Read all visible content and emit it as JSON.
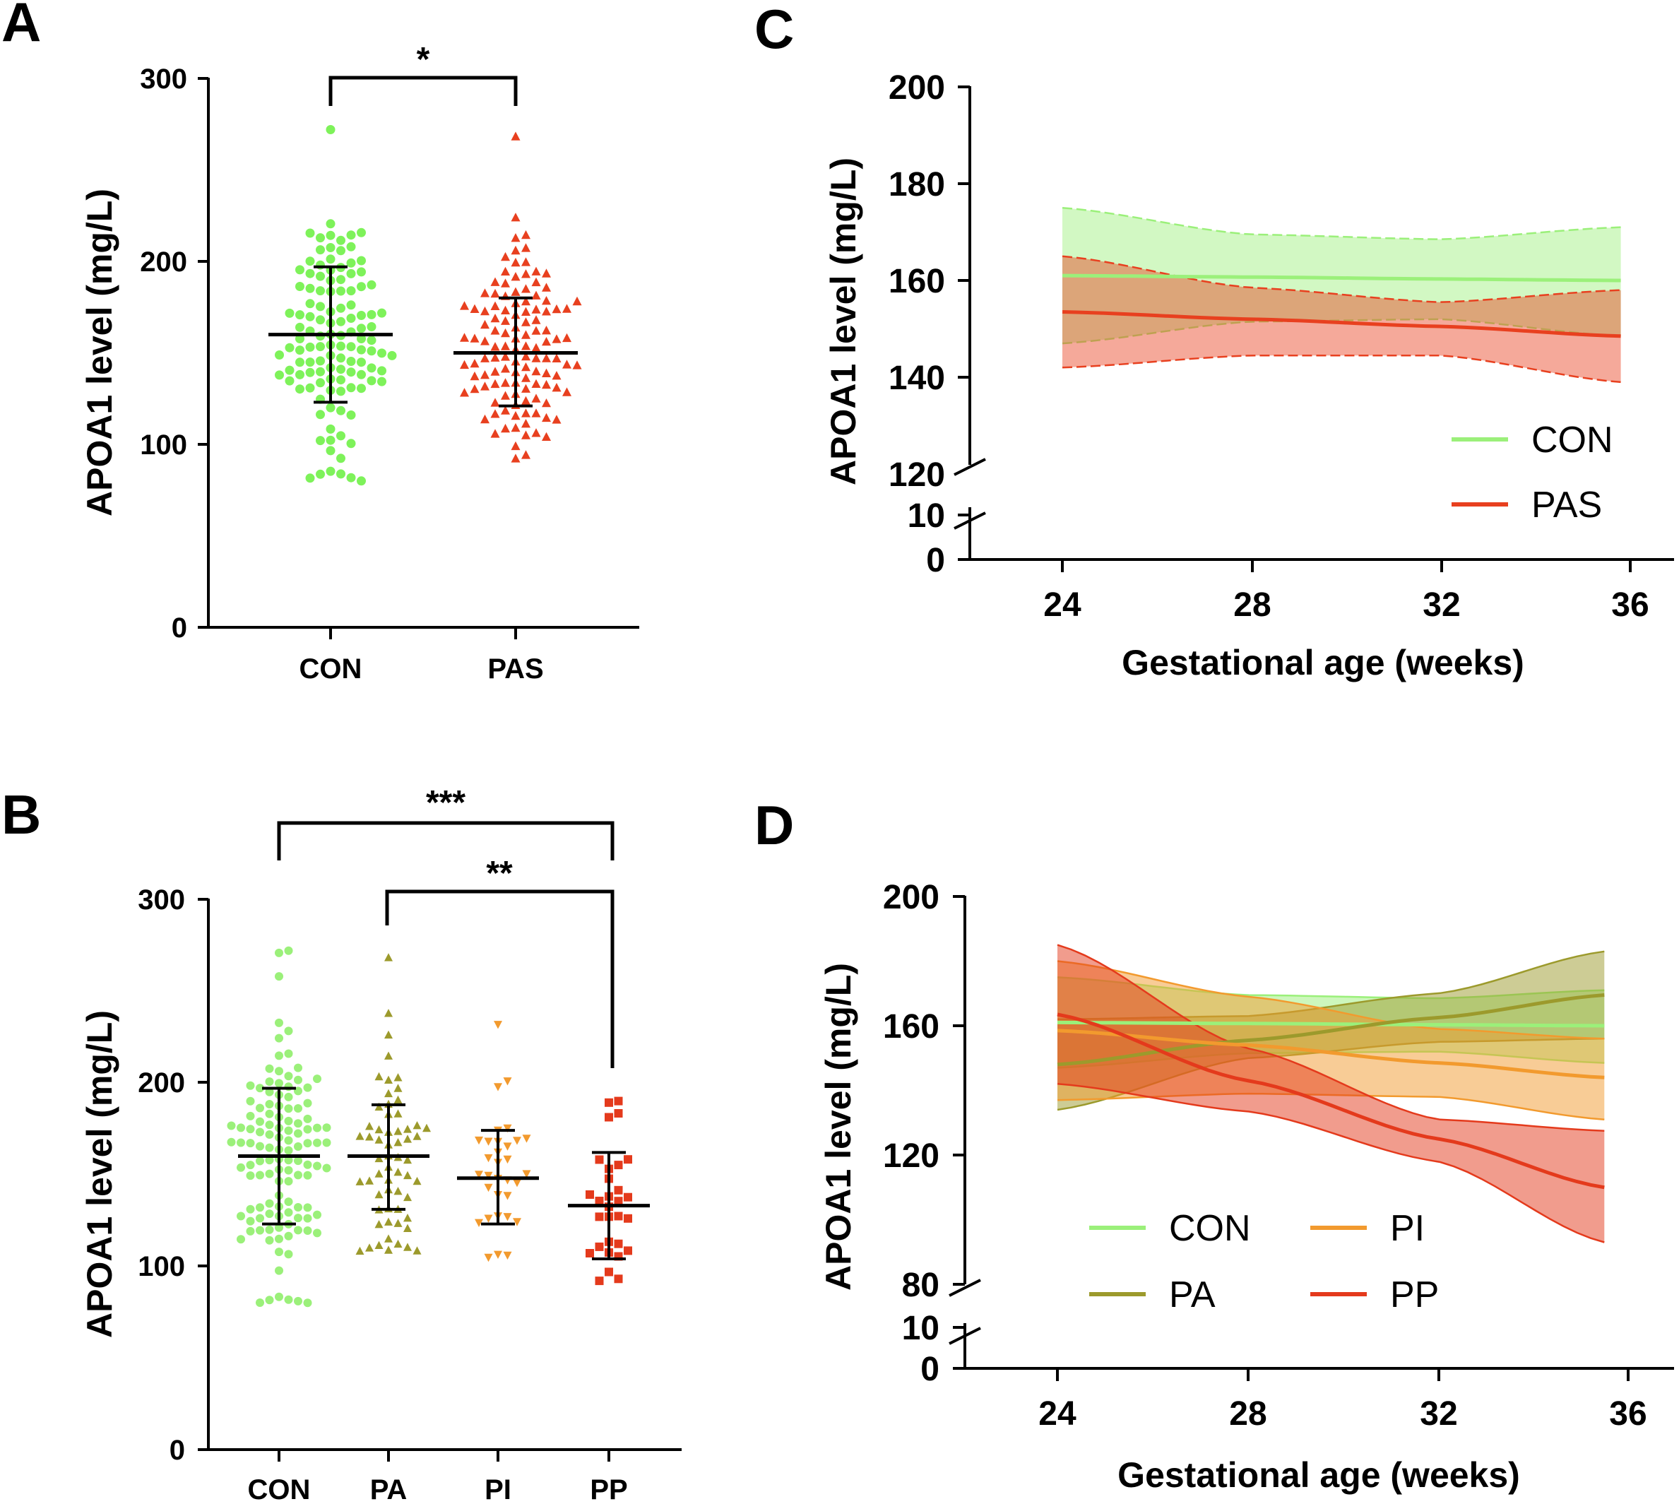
{
  "colors": {
    "CON": "#7ef25a",
    "CON_light": "#9bf07a",
    "PAS": "#e8401f",
    "PA": "#9c9a2c",
    "PI": "#f29a2e",
    "PP": "#e43a1c",
    "axis": "#000000"
  },
  "panels": {
    "A": {
      "letter": "A",
      "ylabel": "APOA1 level (mg/L)",
      "yticks": [
        "0",
        "100",
        "200",
        "300"
      ],
      "categories": [
        "CON",
        "PAS"
      ],
      "significance": [
        {
          "text": "*"
        }
      ]
    },
    "B": {
      "letter": "B",
      "ylabel": "APOA1 level (mg/L)",
      "yticks": [
        "0",
        "100",
        "200",
        "300"
      ],
      "categories": [
        "CON",
        "PA",
        "PI",
        "PP"
      ],
      "significance": [
        {
          "text": "***"
        },
        {
          "text": "**"
        }
      ]
    },
    "C": {
      "letter": "C",
      "ylabel": "APOA1 level (mg/L)",
      "xlabel": "Gestational age (weeks)",
      "yticks_upper": [
        "120",
        "140",
        "160",
        "180",
        "200"
      ],
      "yticks_lower": [
        "0",
        "10"
      ],
      "xticks": [
        "24",
        "28",
        "32",
        "36"
      ],
      "legend": [
        "CON",
        "PAS"
      ]
    },
    "D": {
      "letter": "D",
      "ylabel": "APOA1 level (mg/L)",
      "xlabel": "Gestational age (weeks)",
      "yticks_upper": [
        "80",
        "120",
        "160",
        "200"
      ],
      "yticks_lower": [
        "0",
        "10"
      ],
      "xticks": [
        "24",
        "28",
        "32",
        "36"
      ],
      "legend": [
        "CON",
        "PI",
        "PA",
        "PP"
      ]
    }
  },
  "chart_data": [
    {
      "id": "A",
      "type": "scatter",
      "title": "",
      "xlabel": "",
      "ylabel": "APOA1 level (mg/L)",
      "ylim": [
        0,
        300
      ],
      "categories": [
        "CON",
        "PAS"
      ],
      "series": [
        {
          "name": "CON",
          "n": 120,
          "mean": 160,
          "sd_low": 123,
          "sd_high": 197,
          "min": 80,
          "max": 272,
          "marker": "circle"
        },
        {
          "name": "PAS",
          "n": 120,
          "mean": 150,
          "sd_low": 121,
          "sd_high": 180,
          "min": 92,
          "max": 268,
          "marker": "triangle-up"
        }
      ],
      "comparisons": [
        {
          "groups": [
            "CON",
            "PAS"
          ],
          "label": "*"
        }
      ]
    },
    {
      "id": "B",
      "type": "scatter",
      "title": "",
      "xlabel": "",
      "ylabel": "APOA1 level (mg/L)",
      "ylim": [
        0,
        300
      ],
      "categories": [
        "CON",
        "PA",
        "PI",
        "PP"
      ],
      "series": [
        {
          "name": "CON",
          "n": 120,
          "mean": 160,
          "sd_low": 123,
          "sd_high": 197,
          "min": 80,
          "max": 272,
          "marker": "circle"
        },
        {
          "name": "PA",
          "n": 60,
          "mean": 160,
          "sd_low": 131,
          "sd_high": 188,
          "min": 108,
          "max": 268,
          "marker": "triangle-up"
        },
        {
          "name": "PI",
          "n": 32,
          "mean": 148,
          "sd_low": 123,
          "sd_high": 174,
          "min": 105,
          "max": 232,
          "marker": "triangle-down"
        },
        {
          "name": "PP",
          "n": 30,
          "mean": 133,
          "sd_low": 104,
          "sd_high": 162,
          "min": 92,
          "max": 190,
          "marker": "square"
        }
      ],
      "comparisons": [
        {
          "groups": [
            "CON",
            "PP"
          ],
          "label": "***"
        },
        {
          "groups": [
            "PA",
            "PP"
          ],
          "label": "**"
        }
      ]
    },
    {
      "id": "C",
      "type": "line",
      "title": "",
      "xlabel": "Gestational age (weeks)",
      "ylabel": "APOA1 level (mg/L)",
      "xlim": [
        22,
        36
      ],
      "ylim": [
        120,
        200
      ],
      "axis_break": {
        "lower": [
          0,
          10
        ],
        "upper_start": 120
      },
      "x": [
        24,
        28,
        32,
        35.8
      ],
      "series": [
        {
          "name": "CON",
          "values": [
            161,
            160.7,
            160.3,
            160
          ],
          "lower": [
            147,
            151.5,
            152,
            148.5
          ],
          "upper": [
            175,
            169.5,
            168.5,
            171
          ]
        },
        {
          "name": "PAS",
          "values": [
            153.5,
            152,
            150.5,
            148.5
          ],
          "lower": [
            142,
            144.5,
            144.5,
            139
          ],
          "upper": [
            165,
            158.5,
            155.5,
            158
          ]
        }
      ]
    },
    {
      "id": "D",
      "type": "line",
      "title": "",
      "xlabel": "Gestational age (weeks)",
      "ylabel": "APOA1 level (mg/L)",
      "xlim": [
        22,
        36
      ],
      "ylim": [
        80,
        200
      ],
      "axis_break": {
        "lower": [
          0,
          10
        ],
        "upper_start": 80
      },
      "x": [
        24,
        28,
        32,
        35.5
      ],
      "series": [
        {
          "name": "CON",
          "values": [
            161,
            160.7,
            160.3,
            160
          ],
          "lower": [
            147,
            151.5,
            152,
            148.5
          ],
          "upper": [
            175,
            169.5,
            168.5,
            171
          ]
        },
        {
          "name": "PA",
          "values": [
            148,
            155.5,
            162.5,
            169.5
          ],
          "lower": [
            134,
            150,
            155,
            156
          ],
          "upper": [
            162,
            163,
            170,
            183
          ]
        },
        {
          "name": "PI",
          "values": [
            158.5,
            154,
            148.5,
            144
          ],
          "lower": [
            137,
            139,
            138,
            131
          ],
          "upper": [
            180,
            169,
            159,
            156
          ]
        },
        {
          "name": "PP",
          "values": [
            163.5,
            143,
            125,
            110
          ],
          "lower": [
            142,
            133.5,
            118,
            93
          ],
          "upper": [
            185,
            153,
            131,
            127.5
          ]
        }
      ]
    }
  ]
}
